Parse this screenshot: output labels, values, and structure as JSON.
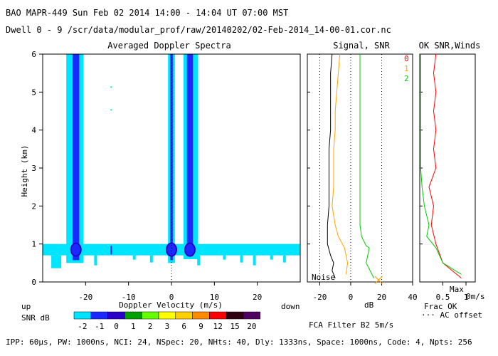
{
  "header": {
    "line1": "BAO  MAPR-449  Sun Feb 02 2014 14:00 - 14:04 UT 07:00 MST",
    "line2": "Dwell  0 -  9   /scr/data/modular_prof/raw/20140202/02-Feb-2014_14-00-01.cor.nc"
  },
  "footer": {
    "params": "IPP: 60μs,  PW: 1000ns,  NCI: 24,  NSpec: 20, NHts: 40,  Dly: 1333ns,  Space: 1000ns,  Code: 4,  Npts: 256",
    "fca": "FCA Filter B2   5m/s"
  },
  "colors": {
    "level_1": "#00e5ff",
    "level_2": "#1a2aff",
    "level_3": "#2a00c8",
    "axis": "#000000",
    "sig_0": "#ff0000",
    "sig_1": "#ffa500",
    "sig_2": "#00cc00"
  },
  "chart_data": [
    {
      "type": "heatmap",
      "title": "Averaged Doppler Spectra",
      "xlabel": "Doppler Velocity (m/s)",
      "ylabel": "Height (km)",
      "xlim": [
        -30,
        30
      ],
      "ylim": [
        0,
        6
      ],
      "x_ticks": [
        "-20",
        "-10",
        "0",
        "10",
        "20"
      ],
      "y_ticks": [
        "0",
        "1",
        "2",
        "3",
        "4",
        "5",
        "6"
      ],
      "left_note": "up",
      "right_note": "down",
      "colorbar": {
        "label": "SNR dB",
        "levels": [
          "-2",
          "-1",
          "0",
          "1",
          "2",
          "3",
          "6",
          "9",
          "12",
          "15",
          "20"
        ],
        "colors": [
          "#00e5ff",
          "#1a2aff",
          "#2a00c8",
          "#00a000",
          "#66ff00",
          "#ffff00",
          "#ffd000",
          "#ff8c00",
          "#ff0000",
          "#300010",
          "#500060"
        ]
      },
      "columns": [
        {
          "name": "left-column",
          "x_range": [
            -24.5,
            -20.5
          ],
          "height_range": [
            0.5,
            6
          ],
          "core_range": [
            -23.0,
            -21.5
          ]
        },
        {
          "name": "zero-column",
          "x_range": [
            -0.8,
            0.8
          ],
          "height_range": [
            0.5,
            6
          ],
          "core_range": [
            -0.3,
            0.3
          ]
        },
        {
          "name": "right-column",
          "x_range": [
            2.8,
            6.2
          ],
          "height_range": [
            0.6,
            6
          ],
          "core_range": [
            3.6,
            5.0
          ]
        }
      ],
      "noise_band": {
        "height_range": [
          0.7,
          1.0
        ],
        "x_range": [
          -30,
          30
        ]
      }
    },
    {
      "type": "line",
      "title": "Signal, SNR",
      "xlabel": "dB",
      "xlim": [
        -28,
        40
      ],
      "ylim": [
        0,
        6
      ],
      "x_ticks": [
        "-20",
        "0",
        "20",
        "40"
      ],
      "noise_label": "Noise",
      "dotted_x": [
        -20,
        0,
        20
      ],
      "series": [
        {
          "name": "signal-dwell-0",
          "color_key": "sig_0",
          "points": [
            [
              -12,
              6
            ],
            [
              -13,
              5.5
            ],
            [
              -13,
              5
            ],
            [
              -13,
              4.5
            ],
            [
              -13,
              4
            ],
            [
              -14,
              3.5
            ],
            [
              -14,
              3
            ],
            [
              -14,
              2.5
            ],
            [
              -14,
              2
            ],
            [
              -15,
              1.5
            ],
            [
              -15,
              1
            ],
            [
              -13,
              0.7
            ],
            [
              -11,
              0.5
            ],
            [
              -12,
              0.3
            ],
            [
              -10,
              0.1
            ]
          ]
        },
        {
          "name": "snr-dwell-0",
          "color_key": "sig_1",
          "points": [
            [
              -7,
              6
            ],
            [
              -8,
              5.5
            ],
            [
              -9,
              5
            ],
            [
              -10,
              4.5
            ],
            [
              -10,
              4
            ],
            [
              -11,
              3.5
            ],
            [
              -11,
              3
            ],
            [
              -11,
              2.5
            ],
            [
              -12,
              2
            ],
            [
              -10,
              1.5
            ],
            [
              -8,
              1.2
            ],
            [
              -4,
              0.9
            ],
            [
              -2,
              0.5
            ],
            [
              -3,
              0.2
            ]
          ]
        },
        {
          "name": "snr-dwell-2",
          "color_key": "sig_2",
          "points": [
            [
              6,
              6
            ],
            [
              6,
              5
            ],
            [
              6,
              4
            ],
            [
              6,
              3
            ],
            [
              6,
              2
            ],
            [
              6,
              1.5
            ],
            [
              7,
              1.2
            ],
            [
              10,
              0.95
            ],
            [
              12,
              0.9
            ],
            [
              10,
              0.5
            ],
            [
              15,
              0.1
            ]
          ]
        }
      ],
      "markers": [
        {
          "x": 18,
          "y": 0.05,
          "symbol": "x"
        }
      ]
    },
    {
      "type": "line",
      "title": "OK SNR,Winds",
      "xlim": [
        0,
        1.2
      ],
      "ylim": [
        0,
        6
      ],
      "x_ticks": [
        "0.5",
        "1"
      ],
      "legend": [
        "0",
        "1",
        "2"
      ],
      "note_frac": "Frac OK",
      "note_ac": "··· AC offset",
      "note_max": "Max",
      "note_speed": "0m/s",
      "series": [
        {
          "name": "frac-ok-red",
          "color_key": "sig_0",
          "points": [
            [
              0.35,
              6
            ],
            [
              0.3,
              5.5
            ],
            [
              0.35,
              5
            ],
            [
              0.3,
              4.5
            ],
            [
              0.35,
              4
            ],
            [
              0.3,
              3.5
            ],
            [
              0.35,
              3
            ],
            [
              0.2,
              2.5
            ],
            [
              0.3,
              2
            ],
            [
              0.25,
              1.5
            ],
            [
              0.35,
              1
            ],
            [
              0.5,
              0.5
            ],
            [
              0.9,
              0.1
            ]
          ]
        },
        {
          "name": "frac-ok-green",
          "color_key": "sig_2",
          "points": [
            [
              0.02,
              6
            ],
            [
              0.02,
              3
            ],
            [
              0.05,
              2.5
            ],
            [
              0.1,
              2
            ],
            [
              0.2,
              1.5
            ],
            [
              0.15,
              1.2
            ],
            [
              0.35,
              0.9
            ],
            [
              0.5,
              0.5
            ],
            [
              0.9,
              0.2
            ]
          ]
        }
      ]
    }
  ]
}
